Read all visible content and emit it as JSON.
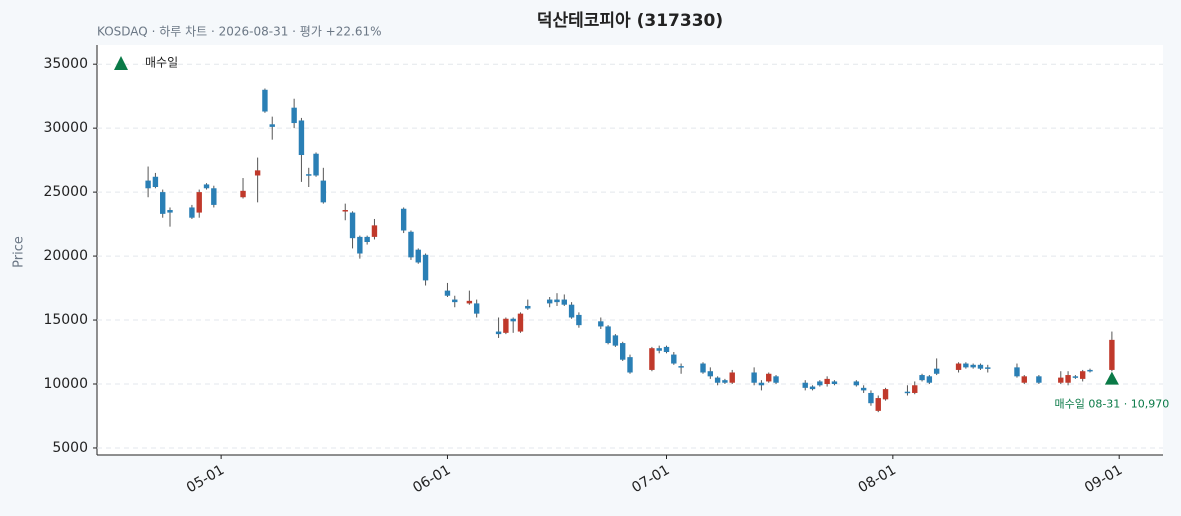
{
  "chart_data": {
    "type": "candlestick",
    "title": "덕산테코피아 (317330)",
    "subtitle": "KOSDAQ · 하루 차트 · 2026-08-31 · 평가 +22.61%",
    "y_label": "Price",
    "up_color": "#c0392b",
    "down_color": "#2a7fb5",
    "x": [
      "2026-04-21",
      "2026-04-22",
      "2026-04-23",
      "2026-04-24",
      "2026-04-27",
      "2026-04-28",
      "2026-04-29",
      "2026-04-30",
      "2026-05-04",
      "2026-05-06",
      "2026-05-07",
      "2026-05-08",
      "2026-05-11",
      "2026-05-12",
      "2026-05-13",
      "2026-05-14",
      "2026-05-15",
      "2026-05-18",
      "2026-05-19",
      "2026-05-20",
      "2026-05-21",
      "2026-05-22",
      "2026-05-26",
      "2026-05-27",
      "2026-05-28",
      "2026-05-29",
      "2026-06-01",
      "2026-06-02",
      "2026-06-04",
      "2026-06-05",
      "2026-06-08",
      "2026-06-09",
      "2026-06-10",
      "2026-06-11",
      "2026-06-12",
      "2026-06-15",
      "2026-06-16",
      "2026-06-17",
      "2026-06-18",
      "2026-06-19",
      "2026-06-22",
      "2026-06-23",
      "2026-06-24",
      "2026-06-25",
      "2026-06-26",
      "2026-06-29",
      "2026-06-30",
      "2026-07-01",
      "2026-07-02",
      "2026-07-03",
      "2026-07-06",
      "2026-07-07",
      "2026-07-08",
      "2026-07-09",
      "2026-07-10",
      "2026-07-13",
      "2026-07-14",
      "2026-07-15",
      "2026-07-16",
      "2026-07-20",
      "2026-07-21",
      "2026-07-22",
      "2026-07-23",
      "2026-07-24",
      "2026-07-27",
      "2026-07-28",
      "2026-07-29",
      "2026-07-30",
      "2026-07-31",
      "2026-08-03",
      "2026-08-04",
      "2026-08-05",
      "2026-08-06",
      "2026-08-07",
      "2026-08-10",
      "2026-08-11",
      "2026-08-12",
      "2026-08-13",
      "2026-08-14",
      "2026-08-18",
      "2026-08-19",
      "2026-08-21",
      "2026-08-24",
      "2026-08-25",
      "2026-08-26",
      "2026-08-27",
      "2026-08-28",
      "2026-08-31"
    ],
    "open": [
      25900,
      26200,
      25000,
      23600,
      23800,
      23400,
      25600,
      25300,
      24600,
      26300,
      33000,
      30300,
      31600,
      30600,
      26400,
      28000,
      25900,
      23500,
      23400,
      21500,
      21500,
      21500,
      23700,
      21900,
      20500,
      20100,
      17300,
      16600,
      16300,
      16300,
      14100,
      14000,
      15100,
      14100,
      16100,
      16600,
      16600,
      16600,
      16200,
      15400,
      14900,
      14500,
      13800,
      13200,
      12100,
      11100,
      12800,
      12900,
      12300,
      11400,
      11600,
      11000,
      10500,
      10300,
      10100,
      10900,
      10100,
      10200,
      10600,
      10100,
      9800,
      10200,
      10000,
      10200,
      10200,
      9700,
      9300,
      7900,
      8800,
      9400,
      9300,
      10700,
      10600,
      11200,
      11100,
      11600,
      11500,
      11500,
      11300,
      11300,
      10100,
      10600,
      10100,
      10100,
      10600,
      10400,
      11100,
      11100
    ],
    "high": [
      27000,
      26500,
      25200,
      23800,
      24000,
      25200,
      25700,
      25500,
      26100,
      27700,
      33100,
      30900,
      32300,
      30800,
      26900,
      28100,
      26900,
      24100,
      23500,
      21600,
      21600,
      22900,
      23800,
      22000,
      20600,
      20200,
      17900,
      16900,
      17300,
      16600,
      15200,
      15200,
      15200,
      15600,
      16600,
      16800,
      17100,
      17000,
      16400,
      15600,
      15200,
      14600,
      13900,
      13300,
      12300,
      12900,
      13000,
      13000,
      12500,
      11600,
      11700,
      11300,
      10600,
      10400,
      11100,
      11300,
      10300,
      10900,
      10700,
      10300,
      9900,
      10300,
      10600,
      10300,
      10300,
      9900,
      9500,
      9100,
      9700,
      9900,
      10200,
      10800,
      10700,
      12000,
      11700,
      11700,
      11600,
      11600,
      11500,
      11600,
      10700,
      10700,
      11000,
      11000,
      10700,
      11100,
      11200,
      14100
    ],
    "low": [
      24600,
      25300,
      23000,
      22300,
      22900,
      23000,
      25200,
      23800,
      24500,
      24200,
      31200,
      29100,
      30000,
      25800,
      25400,
      26200,
      24100,
      22800,
      20600,
      19800,
      20900,
      21300,
      21800,
      19700,
      19400,
      17700,
      16800,
      16000,
      16200,
      15200,
      13600,
      13900,
      14000,
      14000,
      15800,
      16000,
      16100,
      16100,
      15100,
      14400,
      14300,
      13100,
      12900,
      11800,
      10800,
      11000,
      12400,
      12400,
      11500,
      10800,
      10800,
      10400,
      9900,
      10000,
      10000,
      9900,
      9500,
      10100,
      10000,
      9500,
      9500,
      9800,
      9800,
      9900,
      9800,
      9300,
      8300,
      7800,
      8700,
      9100,
      9200,
      10200,
      10000,
      10700,
      10900,
      11200,
      11200,
      11100,
      10900,
      10500,
      10000,
      10000,
      10000,
      9900,
      10400,
      10200,
      10900,
      11000
    ],
    "close": [
      25300,
      25400,
      23300,
      23400,
      23000,
      25000,
      25300,
      24000,
      25100,
      26700,
      31300,
      30100,
      30400,
      27900,
      26300,
      26300,
      24200,
      23600,
      21400,
      20200,
      21100,
      22400,
      22000,
      19900,
      19500,
      18100,
      16900,
      16400,
      16500,
      15500,
      13900,
      15100,
      14900,
      15500,
      15900,
      16300,
      16400,
      16200,
      15200,
      14600,
      14500,
      13200,
      13000,
      11900,
      10900,
      12800,
      12600,
      12500,
      11600,
      11300,
      10900,
      10600,
      10100,
      10100,
      10900,
      10100,
      9900,
      10800,
      10100,
      9700,
      9600,
      9900,
      10400,
      10000,
      9900,
      9500,
      8500,
      8900,
      9600,
      9300,
      9900,
      10300,
      10100,
      10800,
      11600,
      11300,
      11300,
      11200,
      11200,
      10600,
      10600,
      10100,
      10500,
      10700,
      10500,
      11000,
      11000,
      13450
    ],
    "marker": {
      "name": "매수일",
      "x": "2026-08-31",
      "value": 10970,
      "label": "매수일 08-31 · 10,970",
      "color": "#0a7a47"
    },
    "xlim": [
      "2026-04-14",
      "2026-09-07"
    ],
    "xticks": [
      {
        "value": "2026-05-01",
        "label": "05-01"
      },
      {
        "value": "2026-06-01",
        "label": "06-01"
      },
      {
        "value": "2026-07-01",
        "label": "07-01"
      },
      {
        "value": "2026-08-01",
        "label": "08-01"
      },
      {
        "value": "2026-09-01",
        "label": "09-01"
      }
    ],
    "ylim": [
      4450,
      36500
    ],
    "yticks": [
      5000,
      10000,
      15000,
      20000,
      25000,
      30000,
      35000
    ],
    "grid": true
  }
}
